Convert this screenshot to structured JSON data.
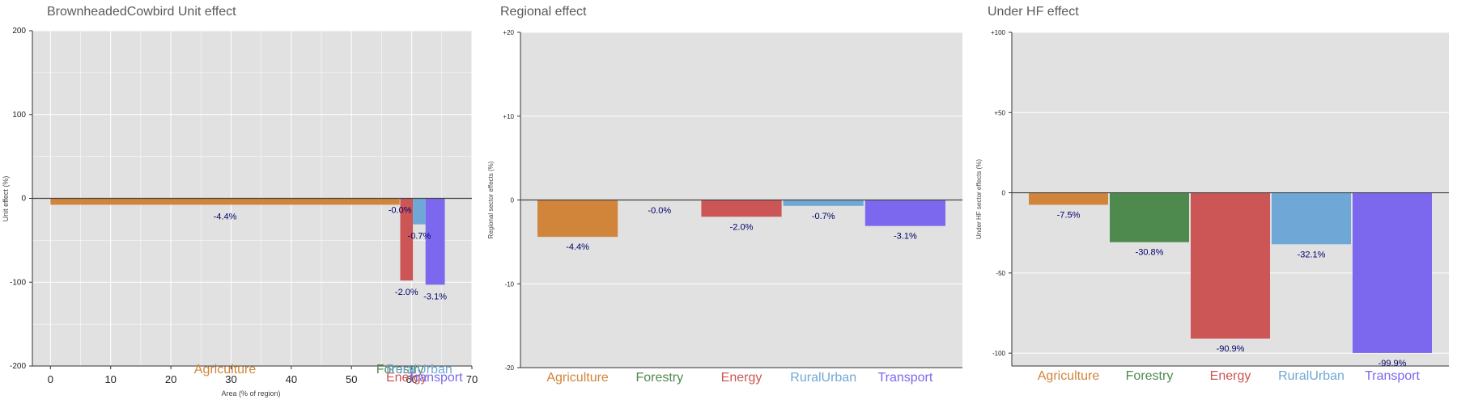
{
  "chart_data": [
    {
      "type": "bar",
      "title": "BrownheadedCowbird Unit effect",
      "xlabel": "Area (% of region)",
      "ylabel": "Unit effect (%)",
      "xlim": [
        -3,
        70
      ],
      "ylim": [
        -200,
        200
      ],
      "xticks": [
        "0",
        "10",
        "20",
        "30",
        "40",
        "50",
        "60",
        "70"
      ],
      "yticks": [
        "200",
        "100",
        "0",
        "-100",
        "-200"
      ],
      "grid": true,
      "series": [
        {
          "category": "Agriculture",
          "x_start": 0,
          "x_end": 58.0,
          "value": -7.6,
          "label": "-4.4%",
          "color": "#D0853B"
        },
        {
          "category": "Forestry",
          "x_start": 58.0,
          "x_end": 58.1,
          "value": -0.1,
          "label": "-0.0%",
          "color": "#4E8A4E"
        },
        {
          "category": "Energy",
          "x_start": 58.1,
          "x_end": 60.2,
          "value": -98,
          "label": "-2.0%",
          "color": "#CC5555"
        },
        {
          "category": "RuralUrban",
          "x_start": 60.2,
          "x_end": 62.3,
          "value": -31,
          "label": "-0.7%",
          "color": "#6FA8D6"
        },
        {
          "category": "Transport",
          "x_start": 62.3,
          "x_end": 65.5,
          "value": -103,
          "label": "-3.1%",
          "color": "#7B68EE"
        }
      ]
    },
    {
      "type": "bar",
      "title": "Regional effect",
      "ylabel": "Regional sector effects (%)",
      "ylim": [
        -20,
        20
      ],
      "yticks": [
        "+20",
        "+10",
        "0",
        "-10",
        "-20"
      ],
      "grid": true,
      "categories": [
        "Agriculture",
        "Forestry",
        "Energy",
        "RuralUrban",
        "Transport"
      ],
      "values": [
        -4.4,
        -0.04,
        -2.0,
        -0.7,
        -3.1
      ],
      "labels": [
        "-4.4%",
        "-0.0%",
        "-2.0%",
        "-0.7%",
        "-3.1%"
      ],
      "colors": [
        "#D0853B",
        "#4E8A4E",
        "#CC5555",
        "#6FA8D6",
        "#7B68EE"
      ]
    },
    {
      "type": "bar",
      "title": "Under HF effect",
      "ylabel": "Under HF sector effects (%)",
      "ylim": [
        -108,
        100
      ],
      "yticks": [
        "+100",
        "+50",
        "0",
        "-50",
        "-100"
      ],
      "grid": true,
      "categories": [
        "Agriculture",
        "Forestry",
        "Energy",
        "RuralUrban",
        "Transport"
      ],
      "values": [
        -7.5,
        -30.8,
        -90.9,
        -32.1,
        -99.9
      ],
      "labels": [
        "-7.5%",
        "-30.8%",
        "-90.9%",
        "-32.1%",
        "-99.9%"
      ],
      "colors": [
        "#D0853B",
        "#4E8A4E",
        "#CC5555",
        "#6FA8D6",
        "#7B68EE"
      ]
    }
  ]
}
